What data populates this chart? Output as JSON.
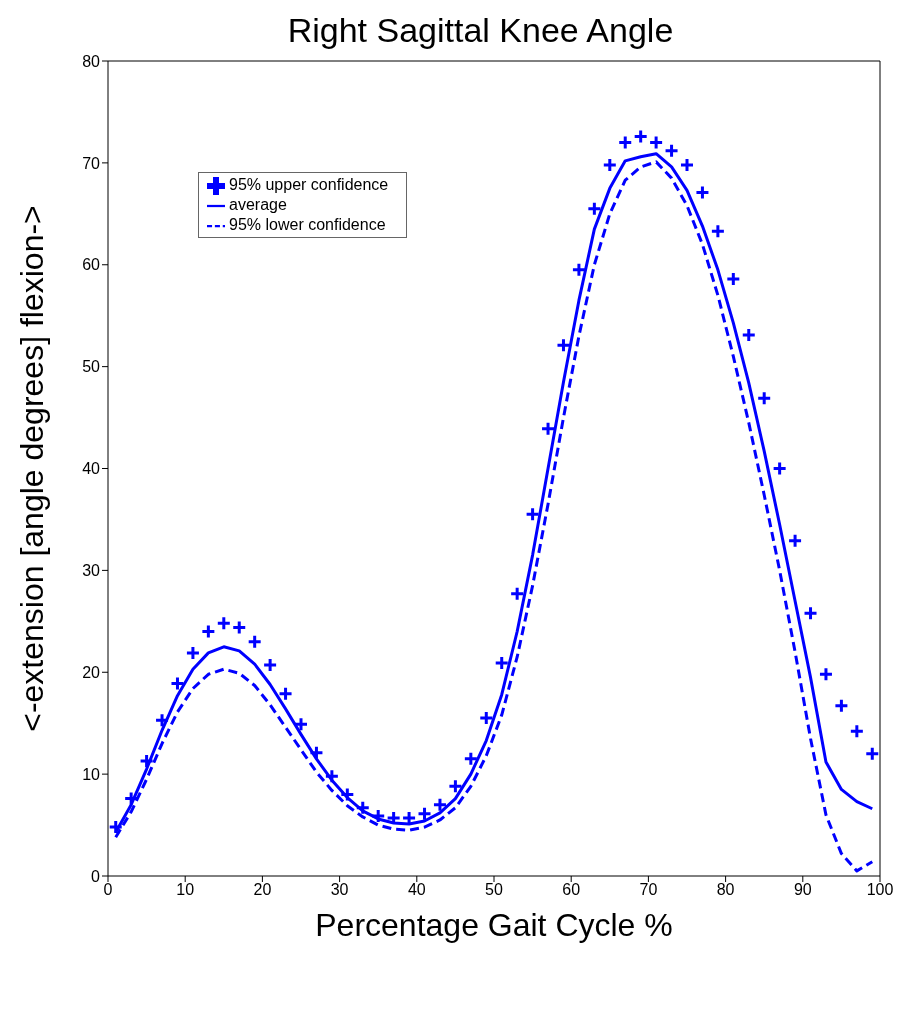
{
  "chart_data": {
    "type": "line",
    "title": "Right Sagittal Knee Angle",
    "xlabel": "Percentage Gait Cycle %",
    "ylabel": "<-extension [angle degrees] flexion->",
    "x": [
      1,
      3,
      5,
      7,
      9,
      11,
      13,
      15,
      17,
      19,
      21,
      23,
      25,
      27,
      29,
      31,
      33,
      35,
      37,
      39,
      41,
      43,
      45,
      47,
      49,
      51,
      53,
      55,
      57,
      59,
      61,
      63,
      65,
      67,
      69,
      71,
      73,
      75,
      77,
      79,
      81,
      83,
      85,
      87,
      89,
      91,
      93,
      95,
      97,
      99
    ],
    "series": [
      {
        "name": "95% upper confidence",
        "type": "scatter",
        "marker": "cross",
        "color": "#0000ff",
        "values": [
          4.8,
          7.6,
          11.3,
          15.3,
          18.9,
          21.9,
          24.0,
          24.8,
          24.4,
          23.0,
          20.7,
          17.9,
          14.9,
          12.1,
          9.8,
          8.0,
          6.7,
          5.9,
          5.7,
          5.7,
          6.1,
          7.0,
          8.8,
          11.5,
          15.5,
          20.9,
          27.7,
          35.5,
          43.9,
          52.1,
          59.5,
          65.5,
          69.8,
          72.0,
          72.6,
          72.0,
          71.2,
          69.8,
          67.1,
          63.3,
          58.6,
          53.1,
          46.9,
          40.0,
          32.9,
          25.8,
          19.8,
          16.7,
          14.2,
          12.0
        ]
      },
      {
        "name": "average",
        "type": "line",
        "line_style": "solid",
        "color": "#0000ff",
        "values": [
          4.3,
          7.0,
          10.5,
          14.3,
          17.7,
          20.3,
          21.9,
          22.5,
          22.1,
          20.8,
          18.8,
          16.4,
          13.9,
          11.5,
          9.4,
          7.7,
          6.4,
          5.6,
          5.2,
          5.1,
          5.4,
          6.2,
          7.6,
          10.0,
          13.3,
          17.8,
          24.0,
          31.5,
          40.0,
          48.5,
          56.5,
          63.5,
          67.5,
          70.2,
          70.6,
          70.9,
          69.6,
          67.3,
          63.8,
          59.5,
          54.3,
          48.4,
          41.7,
          34.5,
          27.0,
          19.5,
          11.2,
          8.5,
          7.3,
          6.6
        ]
      },
      {
        "name": "95% lower confidence",
        "type": "line",
        "line_style": "dashed",
        "color": "#0000ff",
        "values": [
          3.8,
          6.3,
          9.5,
          13.0,
          16.1,
          18.4,
          19.8,
          20.3,
          19.9,
          18.7,
          16.8,
          14.6,
          12.4,
          10.2,
          8.4,
          6.9,
          5.8,
          5.0,
          4.6,
          4.5,
          4.8,
          5.5,
          6.7,
          8.8,
          11.8,
          15.8,
          21.5,
          28.5,
          36.5,
          45.0,
          53.0,
          60.0,
          65.0,
          68.3,
          69.6,
          70.1,
          68.5,
          65.8,
          62.0,
          57.0,
          51.0,
          44.5,
          37.4,
          30.0,
          22.0,
          13.5,
          6.0,
          2.2,
          0.5,
          1.4
        ]
      }
    ],
    "xlim": [
      0,
      100
    ],
    "xticks": [
      0,
      10,
      20,
      30,
      40,
      50,
      60,
      70,
      80,
      90,
      100
    ],
    "ylim": [
      0,
      80
    ],
    "yticks": [
      0,
      10,
      20,
      30,
      40,
      50,
      60,
      70,
      80
    ],
    "grid": false,
    "legend": "top left"
  }
}
